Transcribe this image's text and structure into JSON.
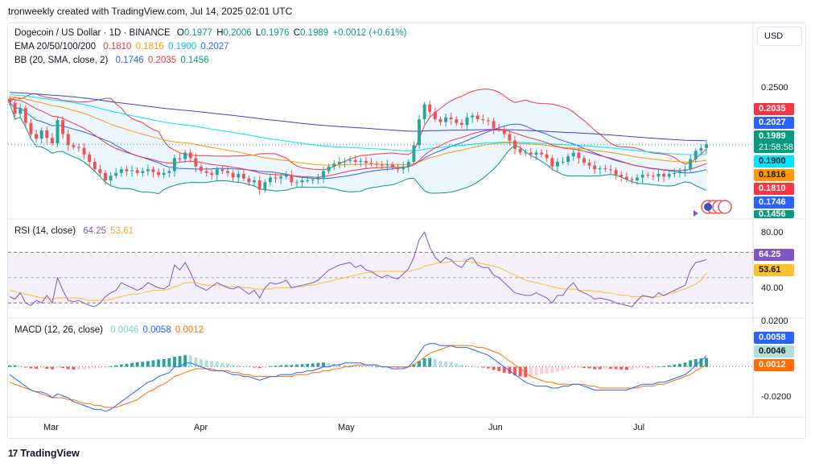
{
  "header": {
    "caption": "tronweekly created with TradingView.com, Jul 14, 2025 02:01 UTC"
  },
  "currency_button": "USD",
  "main_legend": {
    "title": "Dogecoin / US Dollar · 1D · BINANCE",
    "o_label": "O",
    "o": "0.1977",
    "h_label": "H",
    "h": "0.2006",
    "l_label": "L",
    "l": "0.1976",
    "c_label": "C",
    "c": "0.1989",
    "change": "+0.0012 (+0.61%)",
    "ema_label": "EMA 20/50/100/200",
    "ema20": "0.1810",
    "ema50": "0.1816",
    "ema100": "0.1900",
    "ema200": "0.2027",
    "bb_label": "BB (20, SMA, close, 2)",
    "bb_mid": "0.1746",
    "bb_up": "0.2035",
    "bb_low": "0.1456"
  },
  "rsi_legend": {
    "label": "RSI (14, close)",
    "rsi": "64.25",
    "ma": "53.61"
  },
  "macd_legend": {
    "label": "MACD (12, 26, close)",
    "hist": "0.0046",
    "macd": "0.0058",
    "signal": "0.0012"
  },
  "price_axis": {
    "tick_top": "0.2500"
  },
  "price_tags": {
    "bb_up": "0.2035",
    "ema200": "0.2027",
    "close": "0.1989",
    "countdown": "21:58:58",
    "ema100": "0.1900",
    "ema50": "0.1816",
    "ema20": "0.1810",
    "bb_mid": "0.1746",
    "bb_low": "0.1456"
  },
  "rsi_axis": {
    "upper": "80.00",
    "lower": "40.00",
    "rsi_tag": "64.25",
    "ma_tag": "53.61"
  },
  "macd_axis": {
    "upper": "0.0200",
    "lower": "-0.0200",
    "macd_tag": "0.0058",
    "hist_tag": "0.0046",
    "signal_tag": "0.0012"
  },
  "x_axis": {
    "labels": [
      "Mar",
      "Apr",
      "May",
      "Jun",
      "Jul"
    ]
  },
  "branding": "TradingView",
  "colors": {
    "up": "#26a69a",
    "down": "#ef5350",
    "bb_band": "#2196f3",
    "bb_upper": "#f23645",
    "bb_lower": "#089981",
    "bb_mid": "#2962ff",
    "ema20": "#f23645",
    "ema50": "#ff9800",
    "ema100": "#00e5ff",
    "ema200": "#3f3fd6",
    "rsi": "#7e57c2",
    "rsi_ma": "#fbc02d",
    "macd": "#2962ff",
    "signal": "#ff6d00"
  },
  "chart_data": [
    {
      "type": "candlestick",
      "title": "Dogecoin / US Dollar · 1D · BINANCE",
      "x_labels": [
        "Mar",
        "Apr",
        "May",
        "Jun",
        "Jul"
      ],
      "ylim": [
        0.12,
        0.28
      ],
      "close_series": [
        0.244,
        0.232,
        0.238,
        0.222,
        0.21,
        0.205,
        0.214,
        0.206,
        0.2,
        0.225,
        0.21,
        0.198,
        0.196,
        0.195,
        0.188,
        0.18,
        0.172,
        0.168,
        0.16,
        0.165,
        0.168,
        0.172,
        0.17,
        0.171,
        0.168,
        0.17,
        0.172,
        0.169,
        0.166,
        0.168,
        0.17,
        0.184,
        0.183,
        0.19,
        0.184,
        0.175,
        0.17,
        0.168,
        0.166,
        0.172,
        0.17,
        0.168,
        0.163,
        0.167,
        0.162,
        0.158,
        0.16,
        0.15,
        0.158,
        0.163,
        0.162,
        0.164,
        0.166,
        0.158,
        0.158,
        0.16,
        0.16,
        0.161,
        0.163,
        0.17,
        0.175,
        0.178,
        0.18,
        0.181,
        0.182,
        0.18,
        0.181,
        0.179,
        0.178,
        0.177,
        0.176,
        0.177,
        0.174,
        0.172,
        0.175,
        0.18,
        0.198,
        0.226,
        0.242,
        0.234,
        0.226,
        0.223,
        0.228,
        0.226,
        0.222,
        0.22,
        0.228,
        0.23,
        0.226,
        0.225,
        0.224,
        0.216,
        0.215,
        0.21,
        0.203,
        0.194,
        0.19,
        0.19,
        0.188,
        0.19,
        0.188,
        0.184,
        0.175,
        0.18,
        0.18,
        0.186,
        0.19,
        0.184,
        0.179,
        0.176,
        0.172,
        0.173,
        0.172,
        0.171,
        0.166,
        0.164,
        0.161,
        0.16,
        0.163,
        0.166,
        0.165,
        0.164,
        0.167,
        0.164,
        0.167,
        0.168,
        0.17,
        0.172,
        0.183,
        0.192,
        0.195,
        0.199
      ],
      "ema": {
        "ema20": 0.181,
        "ema50": 0.1816,
        "ema100": 0.19,
        "ema200": 0.2027
      },
      "bollinger": {
        "upper": 0.2035,
        "middle": 0.1746,
        "lower": 0.1456
      },
      "last": 0.1989
    },
    {
      "type": "line",
      "title": "RSI (14, close)",
      "ylim": [
        20,
        90
      ],
      "bands": [
        70,
        30
      ],
      "series": [
        {
          "name": "RSI",
          "values": [
            35,
            33,
            38,
            30,
            28,
            32,
            30,
            36,
            30,
            50,
            40,
            32,
            31,
            32,
            30,
            28,
            27,
            30,
            35,
            38,
            40,
            46,
            44,
            42,
            40,
            42,
            46,
            44,
            42,
            41,
            44,
            60,
            56,
            62,
            54,
            44,
            42,
            40,
            43,
            46,
            44,
            42,
            41,
            43,
            40,
            37,
            40,
            34,
            42,
            46,
            45,
            46,
            48,
            42,
            43,
            44,
            45,
            46,
            48,
            52,
            56,
            58,
            60,
            61,
            62,
            58,
            60,
            56,
            55,
            52,
            50,
            52,
            50,
            49,
            53,
            57,
            66,
            80,
            86,
            74,
            66,
            62,
            66,
            64,
            60,
            58,
            64,
            66,
            60,
            58,
            58,
            52,
            50,
            46,
            42,
            38,
            37,
            36,
            36,
            38,
            36,
            34,
            30,
            36,
            36,
            42,
            46,
            40,
            38,
            36,
            33,
            34,
            33,
            32,
            30,
            29,
            28,
            27,
            32,
            36,
            35,
            34,
            38,
            36,
            38,
            40,
            42,
            44,
            56,
            62,
            63,
            64.25
          ]
        },
        {
          "name": "MA",
          "values": [
            40,
            39,
            38,
            37,
            36,
            35,
            34,
            34,
            33,
            34,
            34,
            34,
            34,
            34,
            33,
            32,
            32,
            32,
            32,
            33,
            34,
            35,
            36,
            37,
            37,
            38,
            39,
            40,
            40,
            40,
            41,
            43,
            44,
            46,
            46,
            46,
            45,
            44,
            44,
            44,
            44,
            43,
            43,
            43,
            42,
            42,
            41,
            41,
            41,
            41,
            42,
            42,
            42,
            42,
            43,
            43,
            44,
            44,
            45,
            46,
            47,
            48,
            49,
            50,
            51,
            52,
            53,
            54,
            54,
            55,
            55,
            55,
            55,
            55,
            55,
            55,
            56,
            57,
            59,
            60,
            61,
            62,
            62,
            63,
            63,
            63,
            63,
            62,
            62,
            61,
            60,
            59,
            58,
            56,
            54,
            52,
            50,
            48,
            47,
            46,
            45,
            44,
            43,
            42,
            41,
            41,
            41,
            40,
            40,
            40,
            39,
            39,
            38,
            38,
            37,
            36,
            36,
            35,
            35,
            35,
            35,
            35,
            35,
            36,
            37,
            38,
            40,
            41,
            43,
            45,
            48,
            53.61
          ]
        }
      ]
    },
    {
      "type": "bar",
      "title": "MACD (12, 26, close)",
      "ylim": [
        -0.026,
        0.024
      ],
      "histogram": [
        0.0008,
        0.0008,
        0.0005,
        -0.0004,
        -0.0008,
        -0.001,
        -0.0008,
        -0.001,
        -0.0013,
        -0.0004,
        -0.0006,
        -0.0012,
        -0.0015,
        -0.0014,
        -0.0013,
        -0.001,
        -0.0008,
        -0.0006,
        -0.0004,
        0.0004,
        0.0008,
        0.0012,
        0.0016,
        0.002,
        0.0024,
        0.0026,
        0.003,
        0.0034,
        0.0038,
        0.004,
        0.0044,
        0.0052,
        0.0056,
        0.006,
        0.0058,
        0.0048,
        0.004,
        0.0034,
        0.003,
        0.0028,
        0.0022,
        0.0018,
        0.0012,
        0.0008,
        0.0004,
        0.0002,
        -0.0004,
        -0.0006,
        -0.0002,
        0.0004,
        0.0006,
        0.0008,
        0.001,
        0.001,
        0.0012,
        0.0014,
        0.0016,
        0.0018,
        0.002,
        0.0022,
        0.002,
        0.0016,
        0.0014,
        0.0012,
        0.001,
        0.0008,
        0.0006,
        0.0004,
        0.0002,
        0.0002,
        0.0002,
        0.0002,
        0.0,
        -0.0002,
        0.0,
        0.0004,
        0.0014,
        0.003,
        0.0044,
        0.0046,
        0.004,
        0.0032,
        0.0028,
        0.0024,
        0.0018,
        0.0012,
        0.0008,
        0.0004,
        0.0,
        -0.0004,
        -0.0008,
        -0.0016,
        -0.0022,
        -0.003,
        -0.0036,
        -0.0044,
        -0.005,
        -0.0054,
        -0.005,
        -0.0044,
        -0.0038,
        -0.0034,
        -0.0032,
        -0.0026,
        -0.002,
        -0.0012,
        -0.0006,
        -0.0004,
        -0.0006,
        -0.0008,
        -0.0012,
        -0.0012,
        -0.001,
        -0.001,
        -0.0012,
        -0.0014,
        -0.0016,
        -0.0014,
        -0.0008,
        -0.0004,
        -0.0004,
        -0.0002,
        0.0002,
        0.0004,
        0.0008,
        0.0012,
        0.0016,
        0.0022,
        0.0034,
        0.004,
        0.0044,
        0.0046
      ],
      "series": [
        {
          "name": "MACD",
          "values": [
            -0.004,
            -0.006,
            -0.008,
            -0.01,
            -0.012,
            -0.013,
            -0.013,
            -0.014,
            -0.016,
            -0.014,
            -0.015,
            -0.016,
            -0.018,
            -0.019,
            -0.02,
            -0.021,
            -0.022,
            -0.022,
            -0.023,
            -0.022,
            -0.02,
            -0.018,
            -0.016,
            -0.014,
            -0.012,
            -0.01,
            -0.008,
            -0.007,
            -0.005,
            -0.004,
            -0.003,
            0.0,
            0.0,
            0.002,
            0.002,
            0.001,
            0.0,
            -0.001,
            -0.002,
            -0.002,
            -0.002,
            -0.003,
            -0.004,
            -0.004,
            -0.005,
            -0.005,
            -0.006,
            -0.007,
            -0.006,
            -0.005,
            -0.005,
            -0.004,
            -0.004,
            -0.004,
            -0.003,
            -0.003,
            -0.002,
            -0.002,
            -0.001,
            0.0,
            0.0,
            0.001,
            0.001,
            0.002,
            0.002,
            0.002,
            0.002,
            0.001,
            0.001,
            0.001,
            0.0,
            0.0,
            -0.001,
            -0.001,
            -0.001,
            0.0,
            0.003,
            0.007,
            0.011,
            0.012,
            0.012,
            0.011,
            0.011,
            0.011,
            0.01,
            0.01,
            0.01,
            0.009,
            0.008,
            0.007,
            0.006,
            0.004,
            0.002,
            0.0,
            -0.002,
            -0.004,
            -0.006,
            -0.008,
            -0.009,
            -0.01,
            -0.01,
            -0.01,
            -0.011,
            -0.011,
            -0.01,
            -0.01,
            -0.009,
            -0.009,
            -0.01,
            -0.011,
            -0.012,
            -0.012,
            -0.012,
            -0.012,
            -0.012,
            -0.012,
            -0.012,
            -0.011,
            -0.01,
            -0.009,
            -0.009,
            -0.009,
            -0.008,
            -0.008,
            -0.007,
            -0.006,
            -0.005,
            -0.004,
            -0.002,
            0.001,
            0.003,
            0.0058
          ]
        },
        {
          "name": "Signal",
          "values": [
            -0.008,
            -0.009,
            -0.01,
            -0.011,
            -0.012,
            -0.013,
            -0.014,
            -0.015,
            -0.016,
            -0.016,
            -0.016,
            -0.017,
            -0.017,
            -0.018,
            -0.019,
            -0.019,
            -0.02,
            -0.02,
            -0.021,
            -0.021,
            -0.021,
            -0.02,
            -0.019,
            -0.018,
            -0.017,
            -0.015,
            -0.013,
            -0.012,
            -0.01,
            -0.009,
            -0.007,
            -0.005,
            -0.004,
            -0.003,
            -0.002,
            -0.001,
            -0.001,
            -0.001,
            -0.001,
            -0.002,
            -0.002,
            -0.002,
            -0.003,
            -0.003,
            -0.004,
            -0.004,
            -0.005,
            -0.005,
            -0.005,
            -0.005,
            -0.005,
            -0.005,
            -0.005,
            -0.005,
            -0.004,
            -0.004,
            -0.004,
            -0.003,
            -0.003,
            -0.002,
            -0.002,
            -0.001,
            -0.001,
            0.0,
            0.0,
            0.001,
            0.001,
            0.001,
            0.001,
            0.001,
            0.0,
            0.0,
            0.0,
            0.0,
            0.0,
            0.0,
            0.001,
            0.003,
            0.005,
            0.007,
            0.008,
            0.009,
            0.01,
            0.011,
            0.011,
            0.011,
            0.011,
            0.011,
            0.01,
            0.01,
            0.009,
            0.008,
            0.007,
            0.005,
            0.003,
            0.001,
            -0.001,
            -0.003,
            -0.005,
            -0.006,
            -0.007,
            -0.008,
            -0.008,
            -0.009,
            -0.009,
            -0.009,
            -0.009,
            -0.009,
            -0.009,
            -0.01,
            -0.01,
            -0.011,
            -0.011,
            -0.011,
            -0.011,
            -0.011,
            -0.011,
            -0.011,
            -0.011,
            -0.01,
            -0.01,
            -0.01,
            -0.009,
            -0.009,
            -0.008,
            -0.007,
            -0.006,
            -0.005,
            -0.004,
            -0.002,
            -0.0005,
            0.0012
          ]
        }
      ]
    }
  ]
}
